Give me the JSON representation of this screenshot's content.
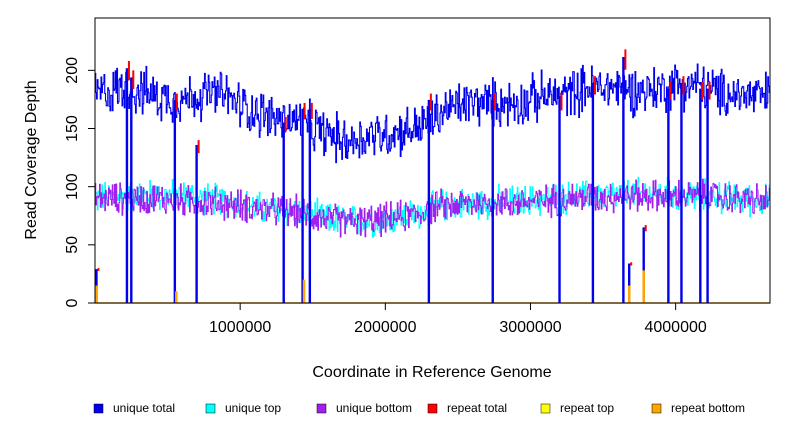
{
  "chart_data": {
    "type": "line",
    "title": "",
    "xlabel": "Coordinate in Reference Genome",
    "ylabel": "Read Coverage Depth",
    "xlim": [
      0,
      4650000
    ],
    "ylim": [
      0,
      245
    ],
    "x_ticks": [
      1000000,
      2000000,
      3000000,
      4000000
    ],
    "x_tick_labels": [
      "1000000",
      "2000000",
      "3000000",
      "4000000"
    ],
    "y_ticks": [
      0,
      50,
      100,
      150,
      200
    ],
    "y_tick_labels": [
      "0",
      "50",
      "100",
      "150",
      "200"
    ],
    "grid": false,
    "legend_position": "bottom",
    "colors": {
      "unique_total": "#0000ee",
      "unique_top": "#00ffff",
      "unique_bottom": "#a020f0",
      "repeat_total": "#ff0000",
      "repeat_top": "#ffff00",
      "repeat_bottom": "#ffa500"
    },
    "legend": [
      {
        "name": "unique total",
        "color": "#0000ee"
      },
      {
        "name": "unique top",
        "color": "#00ffff"
      },
      {
        "name": "unique bottom",
        "color": "#a020f0"
      },
      {
        "name": "repeat total",
        "color": "#ff0000"
      },
      {
        "name": "repeat top",
        "color": "#ffff00"
      },
      {
        "name": "repeat bottom",
        "color": "#ffa500"
      }
    ],
    "series": [
      {
        "name": "unique total",
        "x": [
          0,
          100000,
          200000,
          300000,
          400000,
          500000,
          600000,
          700000,
          800000,
          900000,
          1000000,
          1100000,
          1200000,
          1300000,
          1400000,
          1500000,
          1600000,
          1700000,
          1800000,
          1900000,
          2000000,
          2100000,
          2200000,
          2300000,
          2400000,
          2500000,
          2600000,
          2700000,
          2800000,
          2900000,
          3000000,
          3100000,
          3200000,
          3300000,
          3400000,
          3500000,
          3600000,
          3700000,
          3800000,
          3900000,
          4000000,
          4100000,
          4200000,
          4300000,
          4400000,
          4500000,
          4650000
        ],
        "values": [
          180,
          182,
          185,
          183,
          178,
          176,
          175,
          178,
          180,
          178,
          170,
          165,
          160,
          157,
          156,
          150,
          145,
          140,
          140,
          145,
          145,
          148,
          150,
          155,
          165,
          170,
          172,
          172,
          172,
          172,
          175,
          178,
          178,
          182,
          185,
          185,
          186,
          183,
          183,
          184,
          188,
          188,
          186,
          180,
          180,
          178,
          178
        ]
      },
      {
        "name": "unique top",
        "x": [
          0,
          200000,
          400000,
          600000,
          800000,
          1000000,
          1200000,
          1400000,
          1600000,
          1800000,
          2000000,
          2200000,
          2400000,
          2600000,
          2800000,
          3000000,
          3200000,
          3400000,
          3600000,
          3800000,
          4000000,
          4200000,
          4400000,
          4650000
        ],
        "values": [
          90,
          92,
          93,
          92,
          90,
          85,
          80,
          78,
          72,
          70,
          72,
          76,
          84,
          86,
          87,
          88,
          90,
          92,
          93,
          94,
          93,
          92,
          90,
          88
        ]
      },
      {
        "name": "unique bottom",
        "x": [
          0,
          200000,
          400000,
          600000,
          800000,
          1000000,
          1200000,
          1400000,
          1600000,
          1800000,
          2000000,
          2200000,
          2400000,
          2600000,
          2800000,
          3000000,
          3200000,
          3400000,
          3600000,
          3800000,
          4000000,
          4200000,
          4400000,
          4650000
        ],
        "values": [
          90,
          90,
          90,
          88,
          86,
          84,
          80,
          78,
          72,
          70,
          72,
          76,
          84,
          86,
          86,
          87,
          89,
          91,
          92,
          92,
          92,
          92,
          90,
          88
        ]
      },
      {
        "name": "repeat total",
        "x": [
          10000,
          220000,
          250000,
          550000,
          700000,
          1300000,
          1430000,
          1480000,
          2300000,
          2740000,
          3200000,
          3430000,
          3640000,
          3680000,
          3780000,
          3950000,
          4040000,
          4170000,
          4220000
        ],
        "values": [
          30,
          208,
          200,
          180,
          140,
          160,
          172,
          172,
          180,
          180,
          180,
          195,
          218,
          35,
          67,
          190,
          195,
          190,
          190
        ]
      },
      {
        "name": "repeat top",
        "x": [],
        "values": []
      },
      {
        "name": "repeat bottom",
        "x": [
          10000,
          560000,
          1440000,
          3680000,
          3780000
        ],
        "values": [
          15,
          10,
          20,
          15,
          28
        ]
      }
    ]
  }
}
